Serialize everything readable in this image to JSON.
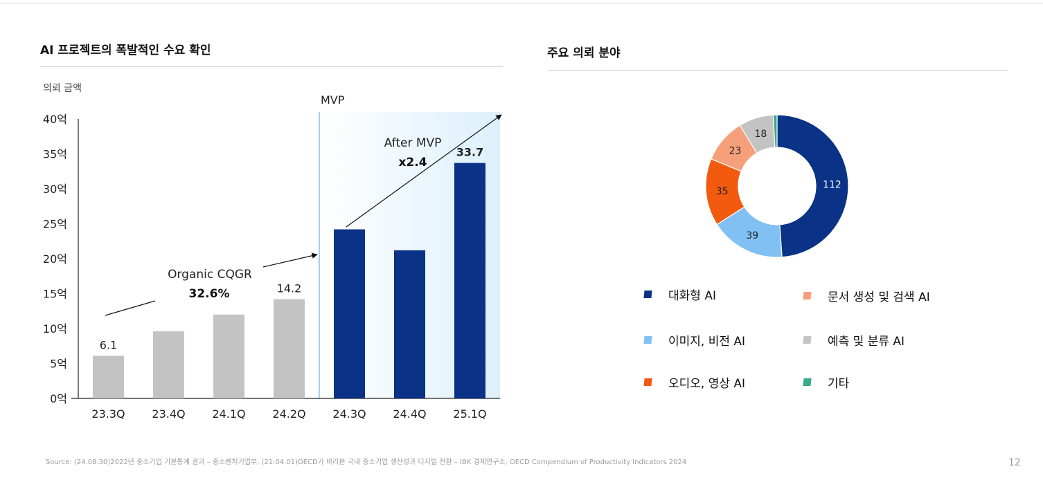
{
  "left_panel": {
    "title": "AI 프로젝트의 폭발적인 수요 확인"
  },
  "right_panel": {
    "title": "주요 의뢰 분야"
  },
  "chart_data": [
    {
      "type": "bar",
      "title": "AI 프로젝트의 폭발적인 수요 확인",
      "ylabel": "의뢰 금액",
      "xlabel": "",
      "ylim": [
        0,
        40
      ],
      "yticks": [
        0,
        5,
        10,
        15,
        20,
        25,
        30,
        35,
        40
      ],
      "ytick_labels": [
        "0억",
        "5억",
        "10억",
        "15억",
        "20억",
        "25억",
        "30억",
        "35억",
        "40억"
      ],
      "categories": [
        "23.3Q",
        "23.4Q",
        "24.1Q",
        "24.2Q",
        "24.3Q",
        "24.4Q",
        "25.1Q"
      ],
      "values": [
        6.1,
        9.6,
        12.0,
        14.2,
        24.2,
        21.2,
        33.7
      ],
      "bar_colors": [
        "#c3c3c3",
        "#c3c3c3",
        "#c3c3c3",
        "#c3c3c3",
        "#0a3286",
        "#0a3286",
        "#0a3286"
      ],
      "data_labels": [
        {
          "category": "23.3Q",
          "text": "6.1",
          "bold": false
        },
        {
          "category": "24.2Q",
          "text": "14.2",
          "bold": false
        },
        {
          "category": "25.1Q",
          "text": "33.7",
          "bold": true
        }
      ],
      "mvp_marker": {
        "label": "MVP",
        "after_category": "24.2Q",
        "line_color": "#8ec5e8"
      },
      "annotations": [
        {
          "label": "Organic CQGR",
          "value": "32.6%"
        },
        {
          "label": "After MVP",
          "value": "x2.4"
        }
      ]
    },
    {
      "type": "pie",
      "variant": "donut",
      "title": "주요 의뢰 분야",
      "labels": [
        "대화형 AI",
        "이미지, 비전 AI",
        "오디오, 영상 AI",
        "문서 생성 및 검색 AI",
        "예측 및 분류 AI",
        "기타"
      ],
      "values": [
        112,
        39,
        35,
        23,
        18,
        2
      ],
      "value_labels": [
        "112",
        "39",
        "35",
        "23",
        "18",
        ""
      ],
      "colors": [
        "#0a3286",
        "#80c0f2",
        "#f25a10",
        "#f5a07a",
        "#c3c3c3",
        "#3aaa88"
      ],
      "legend_position": "below"
    }
  ],
  "legend": [
    {
      "label": "대화형 AI",
      "color": "#0a3286"
    },
    {
      "label": "문서 생성 및 검색 AI",
      "color": "#f5a07a"
    },
    {
      "label": "이미지, 비전 AI",
      "color": "#80c0f2"
    },
    {
      "label": "예측 및 분류 AI",
      "color": "#c3c3c3"
    },
    {
      "label": "오디오, 영상 AI",
      "color": "#f25a10"
    },
    {
      "label": "기타",
      "color": "#3aaa88"
    }
  ],
  "footer": {
    "source": "Source: (24.08.30)2022년 중소기업 기본통계 결과 – 중소벤처기업부, (21.04.01)OECD가 바라본 국내 중소기업 생산성과 디지털 전환 – IBK 경제연구소, OECD Compendium of Productivity Indicators 2024",
    "page_number": "12"
  }
}
